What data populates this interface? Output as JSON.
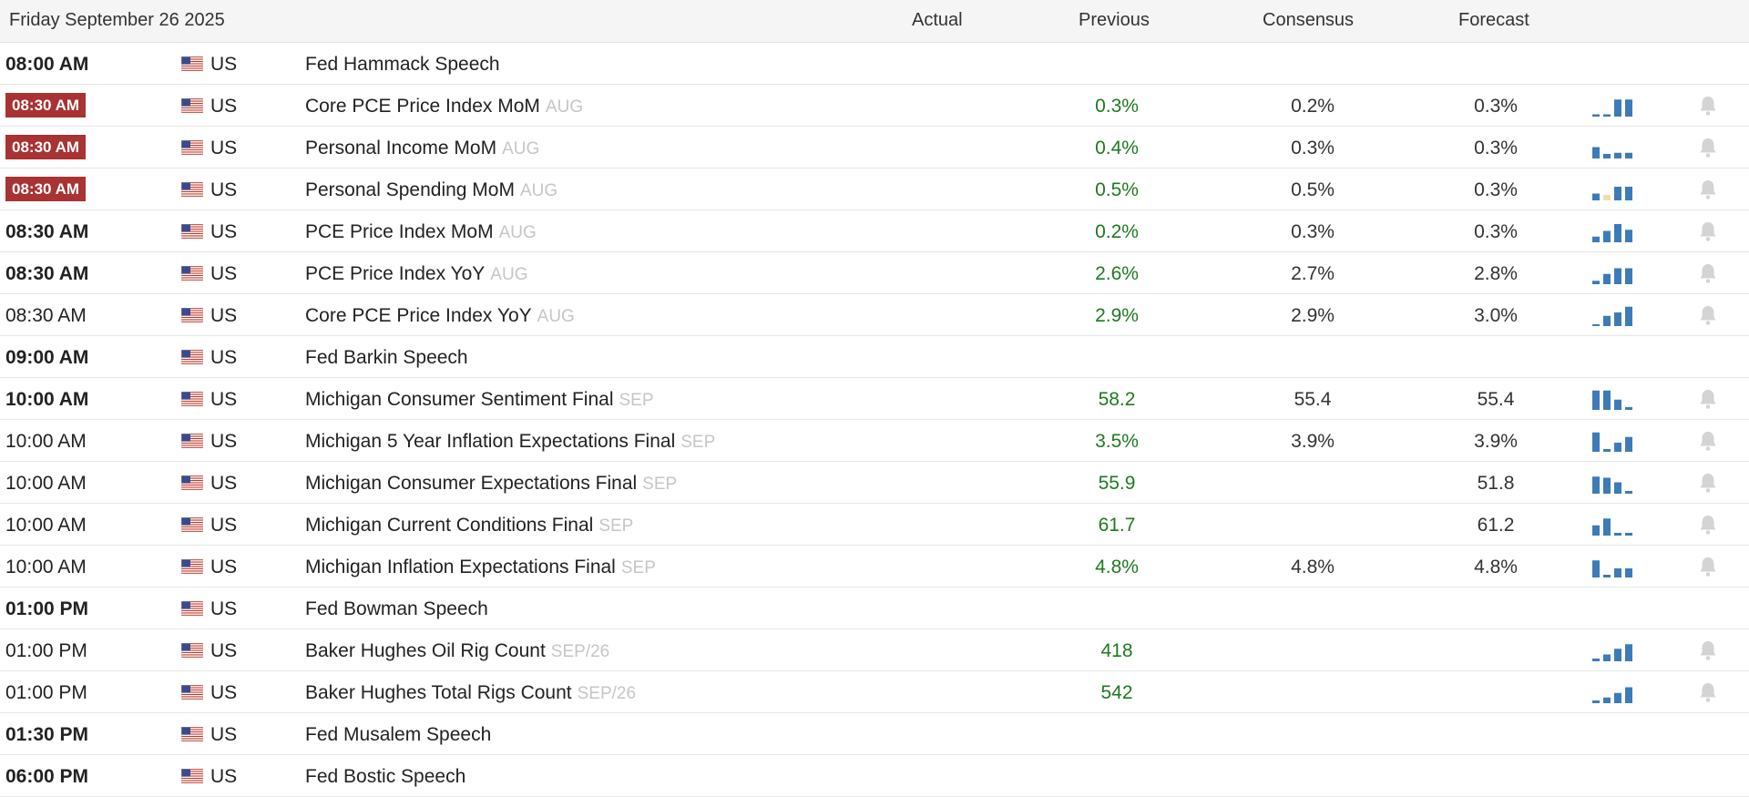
{
  "header": {
    "date": "Friday September 26 2025",
    "actual_label": "Actual",
    "previous_label": "Previous",
    "consensus_label": "Consensus",
    "forecast_label": "Forecast"
  },
  "colors": {
    "highlight_time_bg": "#a93232",
    "previous_value": "#1e7a1e",
    "sparkline_bar": "#3d7bb8",
    "sparkline_pending": "#f2ddb0",
    "bell": "#d4d4d4"
  },
  "events": [
    {
      "time": "08:00 AM",
      "style": "bold",
      "country": "US",
      "name": "Fed Hammack Speech",
      "ref": "",
      "actual": "",
      "previous": "",
      "consensus": "",
      "forecast": "",
      "spark": [],
      "alert": false
    },
    {
      "time": "08:30 AM",
      "style": "badge",
      "country": "US",
      "name": "Core PCE Price Index MoM",
      "ref": "AUG",
      "actual": "",
      "previous": "0.3%",
      "consensus": "0.2%",
      "forecast": "0.3%",
      "spark": [
        0.1,
        0.1,
        0.75,
        0.75
      ],
      "alert": true
    },
    {
      "time": "08:30 AM",
      "style": "badge",
      "country": "US",
      "name": "Personal Income MoM",
      "ref": "AUG",
      "actual": "",
      "previous": "0.4%",
      "consensus": "0.3%",
      "forecast": "0.3%",
      "spark": [
        0.5,
        0.2,
        0.25,
        0.25
      ],
      "alert": true
    },
    {
      "time": "08:30 AM",
      "style": "badge",
      "country": "US",
      "name": "Personal Spending MoM",
      "ref": "AUG",
      "actual": "",
      "previous": "0.5%",
      "consensus": "0.5%",
      "forecast": "0.3%",
      "spark": [
        0.3,
        0.0,
        0.6,
        0.6
      ],
      "alert": true
    },
    {
      "time": "08:30 AM",
      "style": "bold",
      "country": "US",
      "name": "PCE Price Index MoM",
      "ref": "AUG",
      "actual": "",
      "previous": "0.2%",
      "consensus": "0.3%",
      "forecast": "0.3%",
      "spark": [
        0.25,
        0.5,
        0.8,
        0.55
      ],
      "alert": true
    },
    {
      "time": "08:30 AM",
      "style": "bold",
      "country": "US",
      "name": "PCE Price Index YoY",
      "ref": "AUG",
      "actual": "",
      "previous": "2.6%",
      "consensus": "2.7%",
      "forecast": "2.8%",
      "spark": [
        0.15,
        0.45,
        0.7,
        0.7
      ],
      "alert": true
    },
    {
      "time": "08:30 AM",
      "style": "normal",
      "country": "US",
      "name": "Core PCE Price Index YoY",
      "ref": "AUG",
      "actual": "",
      "previous": "2.9%",
      "consensus": "2.9%",
      "forecast": "3.0%",
      "spark": [
        0.08,
        0.45,
        0.6,
        0.85
      ],
      "alert": true
    },
    {
      "time": "09:00 AM",
      "style": "bold",
      "country": "US",
      "name": "Fed Barkin Speech",
      "ref": "",
      "actual": "",
      "previous": "",
      "consensus": "",
      "forecast": "",
      "spark": [],
      "alert": false
    },
    {
      "time": "10:00 AM",
      "style": "bold",
      "country": "US",
      "name": "Michigan Consumer Sentiment Final",
      "ref": "SEP",
      "actual": "",
      "previous": "58.2",
      "consensus": "55.4",
      "forecast": "55.4",
      "spark": [
        0.85,
        0.85,
        0.45,
        0.12
      ],
      "alert": true
    },
    {
      "time": "10:00 AM",
      "style": "normal",
      "country": "US",
      "name": "Michigan 5 Year Inflation Expectations Final",
      "ref": "SEP",
      "actual": "",
      "previous": "3.5%",
      "consensus": "3.9%",
      "forecast": "3.9%",
      "spark": [
        0.85,
        0.12,
        0.4,
        0.65
      ],
      "alert": true
    },
    {
      "time": "10:00 AM",
      "style": "normal",
      "country": "US",
      "name": "Michigan Consumer Expectations Final",
      "ref": "SEP",
      "actual": "",
      "previous": "55.9",
      "consensus": "",
      "forecast": "51.8",
      "spark": [
        0.75,
        0.7,
        0.5,
        0.12
      ],
      "alert": true
    },
    {
      "time": "10:00 AM",
      "style": "normal",
      "country": "US",
      "name": "Michigan Current Conditions Final",
      "ref": "SEP",
      "actual": "",
      "previous": "61.7",
      "consensus": "",
      "forecast": "61.2",
      "spark": [
        0.45,
        0.75,
        0.12,
        0.12
      ],
      "alert": true
    },
    {
      "time": "10:00 AM",
      "style": "normal",
      "country": "US",
      "name": "Michigan Inflation Expectations Final",
      "ref": "SEP",
      "actual": "",
      "previous": "4.8%",
      "consensus": "4.8%",
      "forecast": "4.8%",
      "spark": [
        0.75,
        0.12,
        0.4,
        0.4
      ],
      "alert": true
    },
    {
      "time": "01:00 PM",
      "style": "bold",
      "country": "US",
      "name": "Fed Bowman Speech",
      "ref": "",
      "actual": "",
      "previous": "",
      "consensus": "",
      "forecast": "",
      "spark": [],
      "alert": false
    },
    {
      "time": "01:00 PM",
      "style": "normal",
      "country": "US",
      "name": "Baker Hughes Oil Rig Count",
      "ref": "SEP/26",
      "actual": "",
      "previous": "418",
      "consensus": "",
      "forecast": "",
      "spark": [
        0.12,
        0.3,
        0.55,
        0.75
      ],
      "alert": true
    },
    {
      "time": "01:00 PM",
      "style": "normal",
      "country": "US",
      "name": "Baker Hughes Total Rigs Count",
      "ref": "SEP/26",
      "actual": "",
      "previous": "542",
      "consensus": "",
      "forecast": "",
      "spark": [
        0.12,
        0.25,
        0.45,
        0.7
      ],
      "alert": true
    },
    {
      "time": "01:30 PM",
      "style": "bold",
      "country": "US",
      "name": "Fed Musalem Speech",
      "ref": "",
      "actual": "",
      "previous": "",
      "consensus": "",
      "forecast": "",
      "spark": [],
      "alert": false
    },
    {
      "time": "06:00 PM",
      "style": "bold",
      "country": "US",
      "name": "Fed Bostic Speech",
      "ref": "",
      "actual": "",
      "previous": "",
      "consensus": "",
      "forecast": "",
      "spark": [],
      "alert": false
    }
  ]
}
